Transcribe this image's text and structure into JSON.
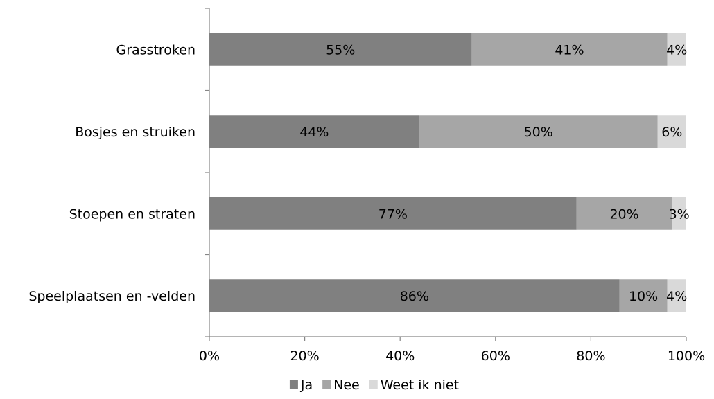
{
  "chart_data": {
    "type": "bar",
    "orientation": "horizontal",
    "stacked": "percent",
    "categories": [
      "Grasstroken",
      "Bosjes en struiken",
      "Stoepen en straten",
      "Speelplaatsen en -velden"
    ],
    "series": [
      {
        "name": "Ja",
        "values": [
          55,
          44,
          77,
          86
        ],
        "color": "#808080"
      },
      {
        "name": "Nee",
        "values": [
          41,
          50,
          20,
          10
        ],
        "color": "#a6a6a6"
      },
      {
        "name": "Weet ik niet",
        "values": [
          4,
          6,
          3,
          4
        ],
        "color": "#d9d9d9"
      }
    ],
    "data_labels": [
      [
        "55%",
        "41%",
        "4%"
      ],
      [
        "44%",
        "50%",
        "6%"
      ],
      [
        "77%",
        "20%",
        "3%"
      ],
      [
        "86%",
        "10%",
        "4%"
      ]
    ],
    "x_ticks": [
      "0%",
      "20%",
      "40%",
      "60%",
      "80%",
      "100%"
    ],
    "xlim": [
      0,
      100
    ],
    "title": "",
    "xlabel": "",
    "ylabel": "",
    "grid": false,
    "legend": "bottom-center"
  }
}
